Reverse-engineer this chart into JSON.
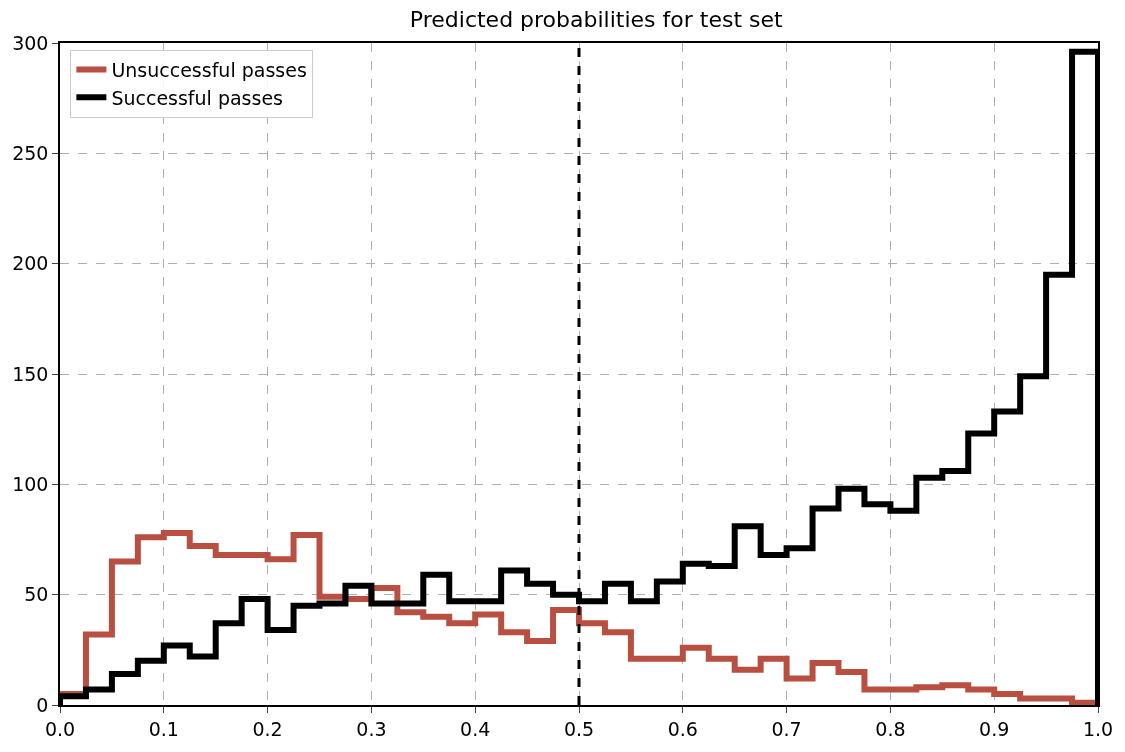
{
  "chart_data": {
    "type": "histogram",
    "title": "Predicted probabilities for test set",
    "bins": [
      0,
      0.025,
      0.05,
      0.075,
      0.1,
      0.125,
      0.15,
      0.175,
      0.2,
      0.225,
      0.25,
      0.275,
      0.3,
      0.325,
      0.35,
      0.375,
      0.4,
      0.425,
      0.45,
      0.475,
      0.5,
      0.525,
      0.55,
      0.575,
      0.6,
      0.625,
      0.65,
      0.675,
      0.7,
      0.725,
      0.75,
      0.775,
      0.8,
      0.825,
      0.85,
      0.875,
      0.9,
      0.925,
      0.95,
      0.975,
      1
    ],
    "series": [
      {
        "name": "Unsuccessful passes",
        "color": "#b84f40",
        "values": [
          5,
          32,
          65,
          76,
          78,
          72,
          68,
          68,
          66,
          77,
          49,
          48,
          53,
          42,
          40,
          37,
          41,
          33,
          29,
          43,
          37,
          33,
          21,
          21,
          26,
          21,
          16,
          21,
          12,
          19,
          15,
          7,
          7,
          8,
          9,
          7,
          5,
          3,
          3,
          1
        ]
      },
      {
        "name": "Successful passes",
        "color": "#000000",
        "values": [
          4,
          7,
          14,
          20,
          27,
          22,
          37,
          48,
          34,
          45,
          46,
          54,
          46,
          46,
          59,
          47,
          47,
          61,
          55,
          50,
          47,
          55,
          47,
          56,
          64,
          63,
          81,
          68,
          71,
          89,
          98,
          91,
          88,
          103,
          106,
          123,
          133,
          149,
          195,
          296
        ]
      }
    ],
    "xlim": [
      0,
      1
    ],
    "xticks": [
      {
        "value": 0,
        "label": "0.0"
      },
      {
        "value": 0.1,
        "label": "0.1"
      },
      {
        "value": 0.2,
        "label": "0.2"
      },
      {
        "value": 0.3,
        "label": "0.3"
      },
      {
        "value": 0.4,
        "label": "0.4"
      },
      {
        "value": 0.5,
        "label": "0.5"
      },
      {
        "value": 0.6,
        "label": "0.6"
      },
      {
        "value": 0.7,
        "label": "0.7"
      },
      {
        "value": 0.8,
        "label": "0.8"
      },
      {
        "value": 0.9,
        "label": "0.9"
      },
      {
        "value": 1,
        "label": "1.0"
      }
    ],
    "ylim": [
      0,
      300
    ],
    "yticks": [
      0,
      50,
      100,
      150,
      200,
      250,
      300
    ],
    "ref_lines": [
      {
        "axis": "x",
        "value": 0.5,
        "color": "#000000",
        "line_style": "dashed"
      }
    ],
    "grid": true,
    "legend": "top left"
  }
}
